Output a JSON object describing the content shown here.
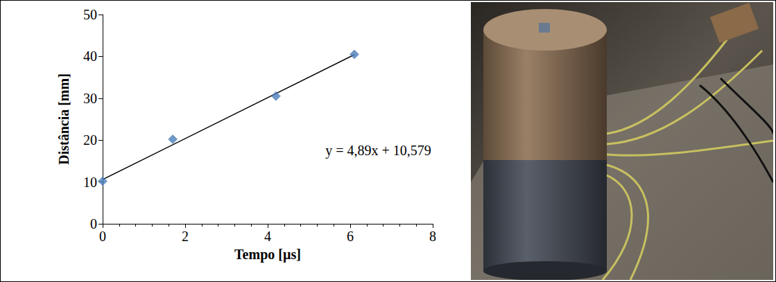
{
  "chart_data": {
    "type": "scatter",
    "x_label": "Tempo [µs]",
    "y_label": "Distância [mm]",
    "x": [
      0,
      1.7,
      4.2,
      6.1
    ],
    "values": [
      10.2,
      20.2,
      30.5,
      40.5
    ],
    "color": "#4a7ebb",
    "marker": "diamond",
    "xlim": [
      0,
      8
    ],
    "xticks": [
      0,
      2,
      4,
      6,
      8
    ],
    "ylim": [
      0,
      50
    ],
    "yticks": [
      0,
      10,
      20,
      30,
      40,
      50
    ],
    "grid": false,
    "trendline": {
      "x": [
        0,
        6.1
      ],
      "values": [
        10.579,
        40.408
      ],
      "color": "#000000",
      "line_style": "solid"
    },
    "annotations": [
      "y = 4,89x + 10,579"
    ]
  }
}
